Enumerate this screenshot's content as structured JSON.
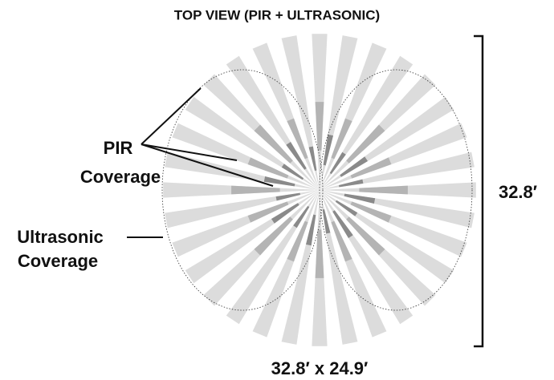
{
  "title": "TOP VIEW (PIR + ULTRASONIC)",
  "labels": {
    "pir": [
      "PIR",
      "Coverage"
    ],
    "ultrasonic": [
      "Ultrasonic",
      "Coverage"
    ]
  },
  "height_dimension": "32.8′",
  "area_dimension": "32.8′ x 24.9′"
}
